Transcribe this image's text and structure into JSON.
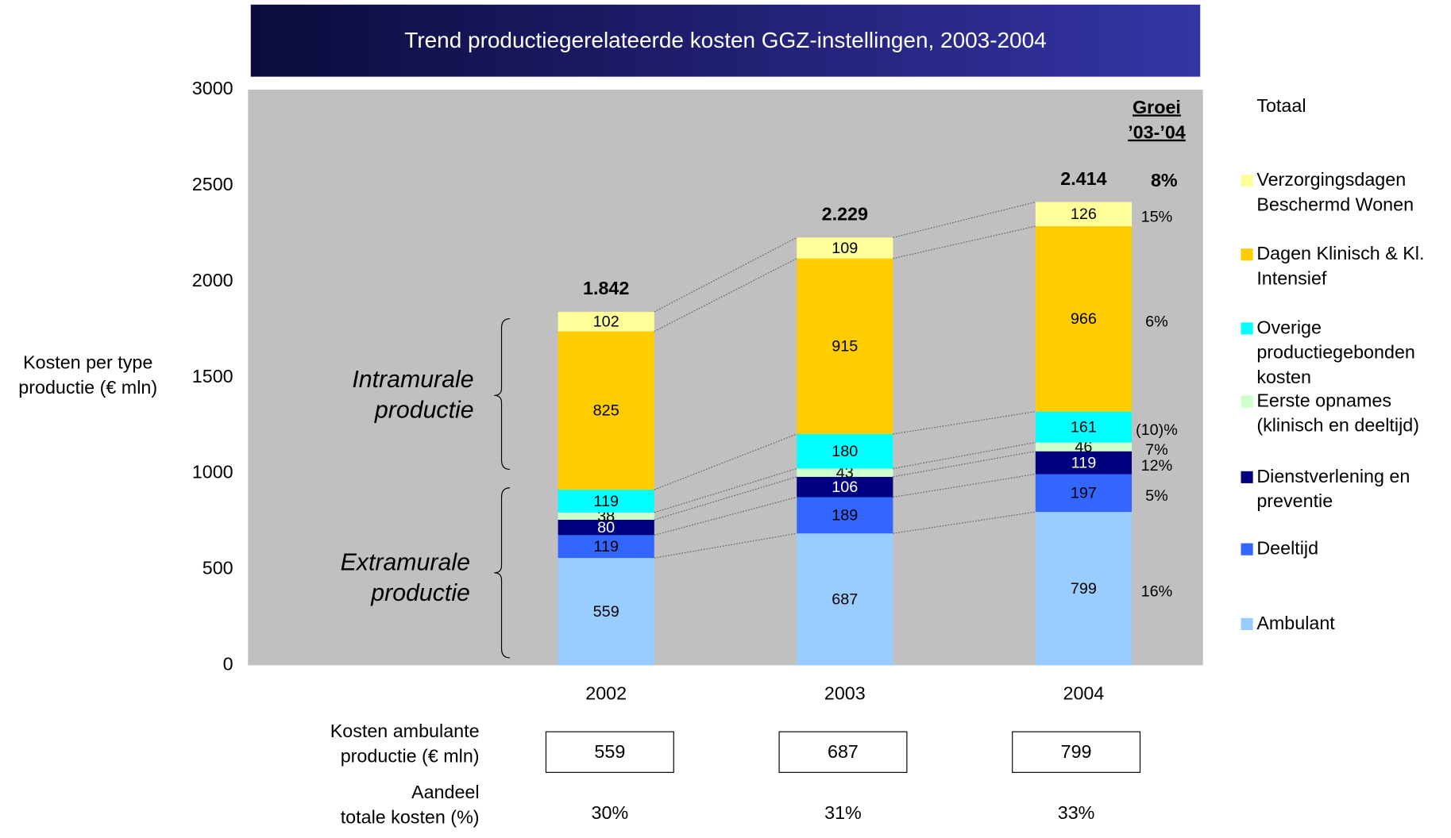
{
  "chart_data": {
    "type": "bar",
    "stacked": true,
    "title": "Trend productiegerelateerde kosten GGZ-instellingen, 2003-2004",
    "ylabel": "Kosten per type productie (€ mln)",
    "ylim": [
      0,
      3000
    ],
    "yticks": [
      0,
      500,
      1000,
      1500,
      2000,
      2500,
      3000
    ],
    "grid": false,
    "background": "#c0c0c0",
    "categories": [
      "2002",
      "2003",
      "2004"
    ],
    "legend_title": "Totaal",
    "growth_title": "Groei ’03-’04",
    "total_growth": {
      "value": 8,
      "label": "8%"
    },
    "totals": {
      "values": [
        1842,
        2229,
        2414
      ],
      "value_labels": [
        "1.842",
        "2.229",
        "2.414"
      ]
    },
    "series": [
      {
        "name": "Ambulant",
        "color": "#99ccff",
        "values": [
          559,
          687,
          799
        ],
        "growth": 16,
        "growth_label": "16%"
      },
      {
        "name": "Deeltijd",
        "color": "#3366ff",
        "values": [
          119,
          189,
          197
        ],
        "growth": 5,
        "growth_label": "5%"
      },
      {
        "name": "Dienstverlening en preventie",
        "color": "#000080",
        "values": [
          80,
          106,
          119
        ],
        "growth": 12,
        "growth_label": "12%"
      },
      {
        "name": "Eerste opnames (klinisch en deeltijd)",
        "color": "#ccffcc",
        "values": [
          38,
          43,
          46
        ],
        "growth": 7,
        "growth_label": "7%"
      },
      {
        "name": "Overige productiegebonden kosten",
        "color": "#00ffff",
        "values": [
          119,
          180,
          161
        ],
        "growth": -10,
        "growth_label": "(10)%"
      },
      {
        "name": "Dagen Klinisch & Kl. Intensief",
        "color": "#ffcc00",
        "values": [
          825,
          915,
          966
        ],
        "growth": 6,
        "growth_label": "6%"
      },
      {
        "name": "Verzorgingsdagen Beschermd Wonen",
        "color": "#ffff99",
        "values": [
          102,
          109,
          126
        ],
        "growth": 15,
        "growth_label": "15%"
      }
    ],
    "annotations": [
      "Intramurale productie",
      "Extramurale productie"
    ],
    "table": {
      "rows": [
        {
          "label": [
            "Kosten ambulante",
            "productie (€ mln)"
          ],
          "values": [
            559,
            687,
            799
          ]
        },
        {
          "label": [
            "Aandeel",
            "totale kosten (%)"
          ],
          "values": [
            30,
            31,
            33
          ],
          "value_labels": [
            "30%",
            "31%",
            "33%"
          ]
        }
      ]
    }
  }
}
